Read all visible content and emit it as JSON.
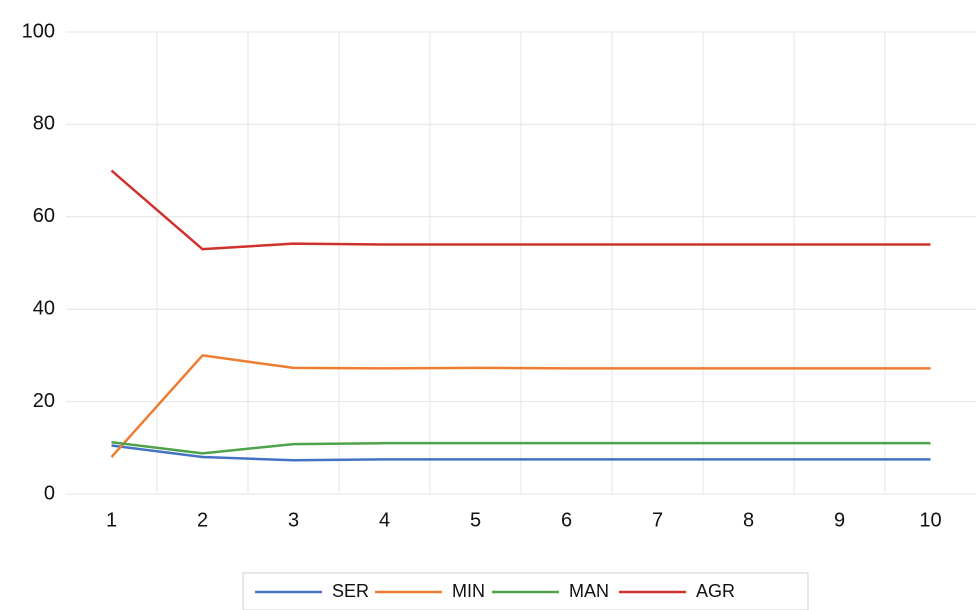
{
  "chart_data": {
    "type": "line",
    "categories": [
      "1",
      "2",
      "3",
      "4",
      "5",
      "6",
      "7",
      "8",
      "9",
      "10"
    ],
    "series": [
      {
        "name": "SER",
        "color": "#4472c4",
        "values": [
          10.5,
          8,
          7.3,
          7.5,
          7.5,
          7.5,
          7.5,
          7.5,
          7.5,
          7.5
        ]
      },
      {
        "name": "MIN",
        "color": "#ed7d31",
        "values": [
          8,
          30,
          27.3,
          27.2,
          27.3,
          27.2,
          27.2,
          27.2,
          27.2,
          27.2
        ]
      },
      {
        "name": "MAN",
        "color": "#4ea24a",
        "values": [
          11.2,
          8.8,
          10.8,
          11,
          11,
          11,
          11,
          11,
          11,
          11
        ]
      },
      {
        "name": "AGR",
        "color": "#d0312d",
        "values": [
          70,
          53,
          54.2,
          54,
          54,
          54,
          54,
          54,
          54,
          54
        ]
      }
    ],
    "ylim": [
      0,
      100
    ],
    "yticks": [
      0,
      20,
      40,
      60,
      80,
      100
    ],
    "grid": true,
    "legend": "bottom"
  }
}
